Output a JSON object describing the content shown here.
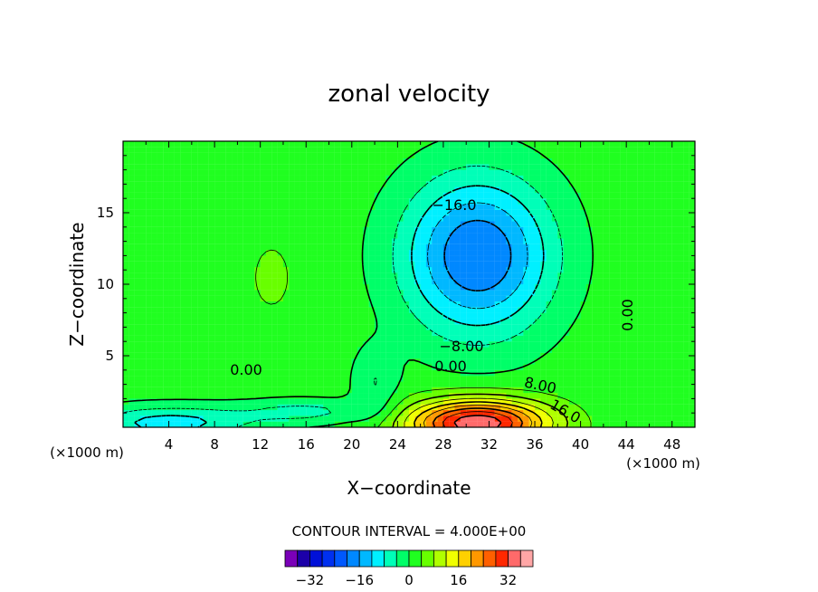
{
  "chart_data": {
    "type": "heatmap",
    "title": "zonal velocity",
    "xlabel": "X−coordinate",
    "ylabel": "Z−coordinate",
    "x_unit_label": "(×1000 m)",
    "x_range": [
      0,
      50
    ],
    "y_range": [
      0,
      20
    ],
    "x_ticks": [
      "4",
      "8",
      "12",
      "16",
      "20",
      "24",
      "28",
      "32",
      "36",
      "40",
      "44",
      "48"
    ],
    "y_ticks": [
      "5",
      "10",
      "15"
    ],
    "contour_labels": [
      "−16.0",
      "−8.00",
      "0.00",
      "0.00",
      "0.00",
      "8.00",
      "16.0"
    ],
    "contour_interval_text": "CONTOUR INTERVAL = 4.000E+00",
    "colorbar": {
      "ticks": [
        "−32",
        "−16",
        "0",
        "16",
        "32"
      ],
      "levels": [
        -36,
        -32,
        -28,
        -24,
        -20,
        -16,
        -12,
        -8,
        -4,
        0,
        4,
        8,
        12,
        16,
        20,
        24,
        28,
        32,
        36
      ],
      "colors": [
        "#7a00b8",
        "#1c00a8",
        "#0010d8",
        "#0030f0",
        "#0058ff",
        "#0088ff",
        "#00b8ff",
        "#00f0ff",
        "#00ffb8",
        "#00ff68",
        "#20ff20",
        "#68ff00",
        "#b0ff00",
        "#f0ff00",
        "#ffd000",
        "#ff9800",
        "#ff6000",
        "#ff2800",
        "#ff6a6a",
        "#ffa6a6"
      ]
    },
    "fields": {
      "upper_jet_min": -22,
      "surface_jet_max": 34,
      "background": 2
    }
  }
}
